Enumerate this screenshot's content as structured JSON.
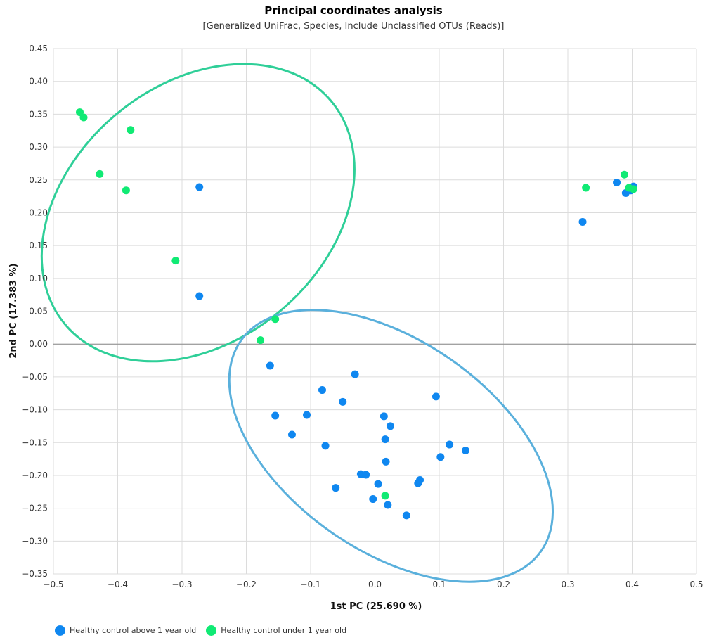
{
  "chart_data": {
    "type": "scatter",
    "title": "Principal coordinates analysis",
    "subtitle": "[Generalized UniFrac, Species, Include Unclassified OTUs (Reads)]",
    "xlabel": "1st PC (25.690 %)",
    "ylabel": "2nd PC (17.383 %)",
    "xlim": [
      -0.5,
      0.5
    ],
    "ylim": [
      -0.35,
      0.45
    ],
    "x_ticks": [
      "-0.5",
      "-0.4",
      "-0.3",
      "-0.2",
      "-0.1",
      "0.0",
      "0.1",
      "0.2",
      "0.3",
      "0.4",
      "0.5"
    ],
    "y_ticks": [
      "0.45",
      "0.40",
      "0.35",
      "0.30",
      "0.25",
      "0.20",
      "0.15",
      "0.10",
      "0.05",
      "0.00",
      "-0.05",
      "-0.10",
      "-0.15",
      "-0.20",
      "-0.25",
      "-0.30",
      "-0.35"
    ],
    "grid": true,
    "legend_position": "bottom-left",
    "series": [
      {
        "name": "Healthy control above 1 year old",
        "color": "#0f87f0",
        "ellipse_color": "#5ab0dc",
        "points": [
          [
            -0.273,
            0.239
          ],
          [
            -0.273,
            0.073
          ],
          [
            0.376,
            0.246
          ],
          [
            0.39,
            0.23
          ],
          [
            0.402,
            0.24
          ],
          [
            0.398,
            0.234
          ],
          [
            0.323,
            0.186
          ],
          [
            -0.163,
            -0.033
          ],
          [
            -0.031,
            -0.046
          ],
          [
            -0.082,
            -0.07
          ],
          [
            -0.05,
            -0.088
          ],
          [
            -0.155,
            -0.109
          ],
          [
            -0.106,
            -0.108
          ],
          [
            0.095,
            -0.08
          ],
          [
            0.014,
            -0.11
          ],
          [
            0.024,
            -0.125
          ],
          [
            -0.129,
            -0.138
          ],
          [
            -0.077,
            -0.155
          ],
          [
            0.016,
            -0.145
          ],
          [
            0.116,
            -0.153
          ],
          [
            0.141,
            -0.162
          ],
          [
            0.102,
            -0.172
          ],
          [
            0.017,
            -0.179
          ],
          [
            -0.022,
            -0.198
          ],
          [
            -0.014,
            -0.199
          ],
          [
            0.07,
            -0.207
          ],
          [
            0.067,
            -0.212
          ],
          [
            0.005,
            -0.213
          ],
          [
            -0.061,
            -0.219
          ],
          [
            -0.003,
            -0.236
          ],
          [
            0.02,
            -0.245
          ],
          [
            0.049,
            -0.261
          ]
        ]
      },
      {
        "name": "Healthy control under 1 year old",
        "color": "#10ea74",
        "ellipse_color": "#2fcf98",
        "points": [
          [
            -0.459,
            0.353
          ],
          [
            -0.453,
            0.345
          ],
          [
            -0.38,
            0.326
          ],
          [
            -0.428,
            0.259
          ],
          [
            -0.387,
            0.234
          ],
          [
            -0.31,
            0.127
          ],
          [
            -0.155,
            0.038
          ],
          [
            -0.178,
            0.006
          ],
          [
            0.328,
            0.238
          ],
          [
            0.388,
            0.258
          ],
          [
            0.395,
            0.238
          ],
          [
            0.402,
            0.236
          ],
          [
            0.016,
            -0.231
          ]
        ]
      }
    ],
    "ellipses": [
      {
        "series": "Healthy control under 1 year old",
        "cx": -0.275,
        "cy": 0.2,
        "rx": 0.27,
        "ry": 0.195,
        "rotation_deg": -40
      },
      {
        "series": "Healthy control above 1 year old",
        "cx": 0.025,
        "cy": -0.155,
        "rx": 0.285,
        "ry": 0.16,
        "rotation_deg": 35
      }
    ]
  }
}
